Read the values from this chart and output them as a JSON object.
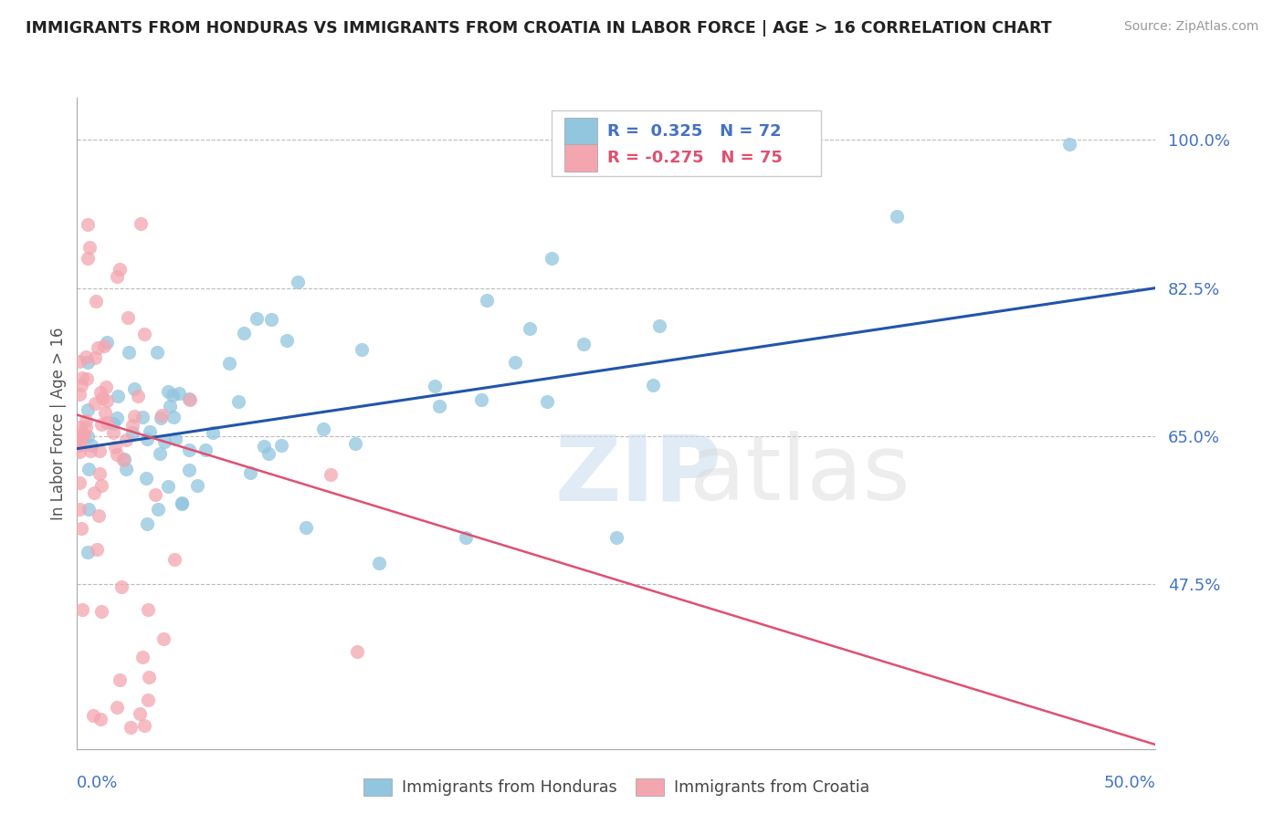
{
  "title": "IMMIGRANTS FROM HONDURAS VS IMMIGRANTS FROM CROATIA IN LABOR FORCE | AGE > 16 CORRELATION CHART",
  "source": "Source: ZipAtlas.com",
  "ylabel": "In Labor Force | Age > 16",
  "xlim": [
    0.0,
    0.5
  ],
  "ylim": [
    0.28,
    1.05
  ],
  "ytick_vals": [
    0.475,
    0.65,
    0.825,
    1.0
  ],
  "ytick_labels": [
    "47.5%",
    "65.0%",
    "82.5%",
    "100.0%"
  ],
  "legend_label1": "Immigrants from Honduras",
  "legend_label2": "Immigrants from Croatia",
  "color_honduras_fill": "#92C5DE",
  "color_croatia_fill": "#F4A6B0",
  "color_trend_honduras": "#2255AA",
  "color_trend_croatia": "#E05070",
  "color_axis_labels": "#4472C4",
  "color_grid": "#BBBBBB",
  "color_legend_text_blue": "#4472C4",
  "color_legend_text_pink": "#E05070",
  "trend_honduras_x0": 0.0,
  "trend_honduras_y0": 0.635,
  "trend_honduras_x1": 0.5,
  "trend_honduras_y1": 0.825,
  "trend_croatia_x0": 0.0,
  "trend_croatia_y0": 0.675,
  "trend_croatia_x1": 0.5,
  "trend_croatia_y1": 0.285
}
